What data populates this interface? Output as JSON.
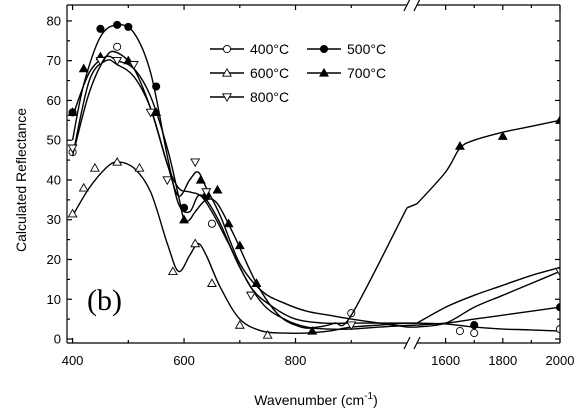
{
  "chart_data": {
    "type": "line",
    "panel_label": "(b)",
    "xlabel_main": "Wavenumber (cm",
    "xlabel_sup": "-1",
    "xlabel_close": ")",
    "ylabel": "Calculated Reflectance",
    "ylim": [
      -1,
      84
    ],
    "yticks": [
      0,
      10,
      20,
      30,
      40,
      50,
      60,
      70,
      80
    ],
    "x_segments": [
      {
        "range": [
          390,
          1000
        ],
        "ticks": [
          400,
          600,
          800
        ]
      },
      {
        "range": [
          1500,
          2000
        ],
        "ticks": [
          1600,
          1800,
          2000
        ]
      }
    ],
    "legend_position": "top-right",
    "series": [
      {
        "name": "400°C",
        "marker": "open-circle",
        "curve": [
          [
            400,
            46
          ],
          [
            430,
            62
          ],
          [
            460,
            71
          ],
          [
            480,
            72
          ],
          [
            510,
            68
          ],
          [
            540,
            58
          ],
          [
            570,
            44
          ],
          [
            590,
            38
          ],
          [
            610,
            37
          ],
          [
            630,
            36
          ],
          [
            650,
            32
          ],
          [
            680,
            24
          ],
          [
            720,
            13
          ],
          [
            760,
            8
          ],
          [
            800,
            5
          ],
          [
            850,
            4
          ],
          [
            900,
            4
          ],
          [
            950,
            4
          ],
          [
            1000,
            4
          ],
          [
            1500,
            4
          ],
          [
            1600,
            3.8
          ],
          [
            1700,
            3
          ],
          [
            1800,
            2.5
          ],
          [
            1900,
            2.3
          ],
          [
            2000,
            2
          ]
        ],
        "points": [
          [
            400,
            47
          ],
          [
            480,
            73.5
          ],
          [
            650,
            29
          ],
          [
            900,
            6.5
          ],
          [
            1650,
            2
          ],
          [
            1700,
            1.5
          ],
          [
            2000,
            2.5
          ]
        ]
      },
      {
        "name": "500°C",
        "marker": "filled-circle",
        "curve": [
          [
            400,
            50
          ],
          [
            420,
            64
          ],
          [
            450,
            76
          ],
          [
            480,
            79
          ],
          [
            510,
            77
          ],
          [
            540,
            67
          ],
          [
            570,
            46
          ],
          [
            590,
            34
          ],
          [
            610,
            32
          ],
          [
            625,
            36
          ],
          [
            640,
            35
          ],
          [
            665,
            29
          ],
          [
            700,
            18
          ],
          [
            740,
            9
          ],
          [
            780,
            5
          ],
          [
            820,
            3
          ],
          [
            860,
            2.5
          ],
          [
            900,
            2.5
          ],
          [
            950,
            3
          ],
          [
            1000,
            3.4
          ],
          [
            1500,
            3.5
          ],
          [
            1600,
            4
          ],
          [
            1700,
            5
          ],
          [
            1800,
            6
          ],
          [
            1900,
            7
          ],
          [
            2000,
            8
          ]
        ],
        "points": [
          [
            400,
            57
          ],
          [
            450,
            78
          ],
          [
            480,
            79
          ],
          [
            500,
            78.5
          ],
          [
            550,
            63.5
          ],
          [
            600,
            33
          ],
          [
            640,
            36
          ],
          [
            1700,
            3.5
          ],
          [
            2000,
            8
          ]
        ]
      },
      {
        "name": "600°C",
        "marker": "open-triangle-up",
        "curve": [
          [
            400,
            31
          ],
          [
            430,
            38
          ],
          [
            460,
            43
          ],
          [
            480,
            44.5
          ],
          [
            510,
            43
          ],
          [
            540,
            37
          ],
          [
            570,
            24
          ],
          [
            590,
            17
          ],
          [
            610,
            21
          ],
          [
            625,
            24
          ],
          [
            640,
            21
          ],
          [
            665,
            13
          ],
          [
            700,
            5
          ],
          [
            740,
            2
          ],
          [
            780,
            1.5
          ],
          [
            820,
            1.5
          ],
          [
            860,
            2
          ],
          [
            900,
            3
          ],
          [
            950,
            3.5
          ],
          [
            1000,
            4
          ],
          [
            1500,
            4
          ],
          [
            1600,
            8
          ],
          [
            1700,
            11
          ],
          [
            1800,
            13.5
          ],
          [
            1900,
            16
          ],
          [
            2000,
            18
          ]
        ],
        "points": [
          [
            400,
            31.5
          ],
          [
            420,
            38
          ],
          [
            440,
            43
          ],
          [
            480,
            44.5
          ],
          [
            520,
            43
          ],
          [
            580,
            17
          ],
          [
            620,
            24
          ],
          [
            650,
            14
          ],
          [
            700,
            3.5
          ],
          [
            750,
            1
          ]
        ]
      },
      {
        "name": "700°C",
        "marker": "filled-triangle-up",
        "curve": [
          [
            400,
            56
          ],
          [
            430,
            67
          ],
          [
            460,
            71
          ],
          [
            480,
            70
          ],
          [
            510,
            68
          ],
          [
            540,
            61
          ],
          [
            570,
            48
          ],
          [
            590,
            36
          ],
          [
            600,
            30
          ],
          [
            610,
            30
          ],
          [
            620,
            32
          ],
          [
            640,
            35
          ],
          [
            660,
            34
          ],
          [
            690,
            26
          ],
          [
            730,
            14
          ],
          [
            770,
            6
          ],
          [
            810,
            3
          ],
          [
            840,
            3
          ],
          [
            870,
            4
          ],
          [
            900,
            6
          ],
          [
            1000,
            33
          ],
          [
            1500,
            34
          ],
          [
            1600,
            42
          ],
          [
            1650,
            48
          ],
          [
            1700,
            50
          ],
          [
            1800,
            52
          ],
          [
            1900,
            53.5
          ],
          [
            2000,
            55
          ]
        ],
        "points": [
          [
            400,
            57
          ],
          [
            420,
            68
          ],
          [
            450,
            71
          ],
          [
            500,
            70
          ],
          [
            550,
            57
          ],
          [
            600,
            30
          ],
          [
            630,
            40
          ],
          [
            660,
            37.5
          ],
          [
            680,
            29
          ],
          [
            700,
            23.5
          ],
          [
            730,
            14
          ],
          [
            830,
            2
          ],
          [
            1650,
            48.5
          ],
          [
            1800,
            51
          ],
          [
            2000,
            55
          ]
        ]
      },
      {
        "name": "800°C",
        "marker": "open-triangle-down",
        "curve": [
          [
            400,
            46
          ],
          [
            430,
            65
          ],
          [
            460,
            70
          ],
          [
            480,
            69
          ],
          [
            510,
            66
          ],
          [
            540,
            58
          ],
          [
            570,
            44
          ],
          [
            590,
            36
          ],
          [
            610,
            40
          ],
          [
            625,
            42
          ],
          [
            640,
            38
          ],
          [
            665,
            31
          ],
          [
            700,
            19
          ],
          [
            740,
            12
          ],
          [
            780,
            9
          ],
          [
            820,
            7
          ],
          [
            860,
            6
          ],
          [
            900,
            5
          ],
          [
            950,
            4
          ],
          [
            1000,
            3
          ],
          [
            1500,
            3
          ],
          [
            1600,
            4
          ],
          [
            1700,
            8
          ],
          [
            1800,
            11
          ],
          [
            1900,
            14
          ],
          [
            2000,
            17
          ]
        ],
        "points": [
          [
            400,
            48
          ],
          [
            450,
            70
          ],
          [
            480,
            70
          ],
          [
            510,
            69
          ],
          [
            540,
            57
          ],
          [
            570,
            40
          ],
          [
            620,
            44.5
          ],
          [
            640,
            37
          ],
          [
            720,
            11
          ],
          [
            900,
            3.5
          ],
          [
            2000,
            17
          ]
        ]
      }
    ]
  }
}
